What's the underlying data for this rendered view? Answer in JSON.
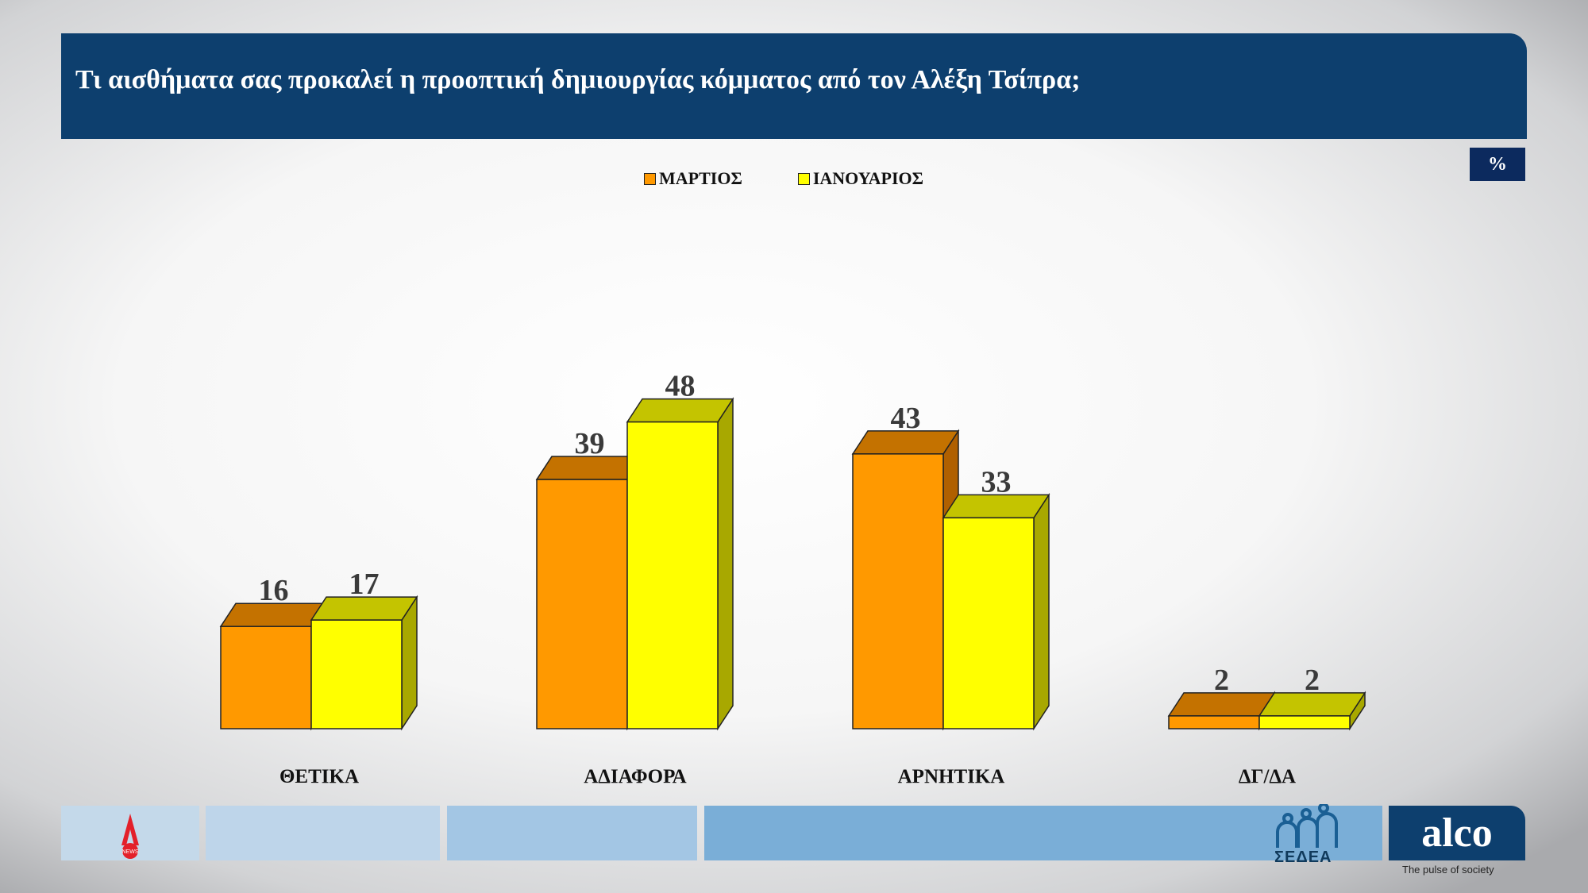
{
  "header": {
    "title": "Τι αισθήματα σας προκαλεί η προοπτική δημιουργίας κόμματος από τον Αλέξη Τσίπρα;"
  },
  "unit_badge": "%",
  "chart_data": {
    "type": "bar",
    "title": "Τι αισθήματα σας προκαλεί η προοπτική δημιουργίας κόμματος από τον Αλέξη Τσίπρα;",
    "categories": [
      "ΘΕΤΙΚΑ",
      "ΑΔΙΑΦΟΡΑ",
      "ΑΡΝΗΤΙΚΑ",
      "ΔΓ/ΔΑ"
    ],
    "series": [
      {
        "name": "ΜΑΡΤΙΟΣ",
        "values": [
          16,
          39,
          43,
          2
        ],
        "color": "#ff9900"
      },
      {
        "name": "ΙΑΝΟΥΑΡΙΟΣ",
        "values": [
          17,
          48,
          33,
          2
        ],
        "color": "#ffff00"
      }
    ],
    "style": "3d-bar",
    "grid": false,
    "legend": "top"
  },
  "footer": {
    "logos": [
      "alpha-news",
      "ΣΕΔΕΑ",
      "alco"
    ],
    "sedea_label": "ΣΕΔΕΑ",
    "alco_label": "alco",
    "alco_tagline": "The pulse of society",
    "alpha_label": "NEWS"
  }
}
